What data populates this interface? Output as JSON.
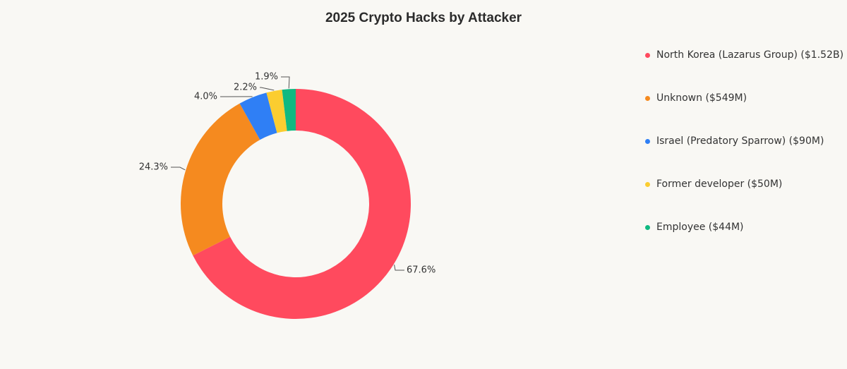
{
  "chart_data": {
    "type": "pie",
    "title": "2025 Crypto Hacks by Attacker",
    "donut": true,
    "legend_position": "right",
    "slices": [
      {
        "label": "North Korea (Lazarus Group) ($1.52B)",
        "value": 67.6,
        "display": "67.6%",
        "color": "#ff4a5e"
      },
      {
        "label": "Unknown ($549M)",
        "value": 24.3,
        "display": "24.3%",
        "color": "#f58a1f"
      },
      {
        "label": "Israel (Predatory Sparrow) ($90M)",
        "value": 4.0,
        "display": "4.0%",
        "color": "#2f7ff5"
      },
      {
        "label": "Former developer ($50M)",
        "value": 2.2,
        "display": "2.2%",
        "color": "#fbcd30"
      },
      {
        "label": "Employee ($44M)",
        "value": 1.9,
        "display": "1.9%",
        "color": "#10b981"
      }
    ]
  }
}
